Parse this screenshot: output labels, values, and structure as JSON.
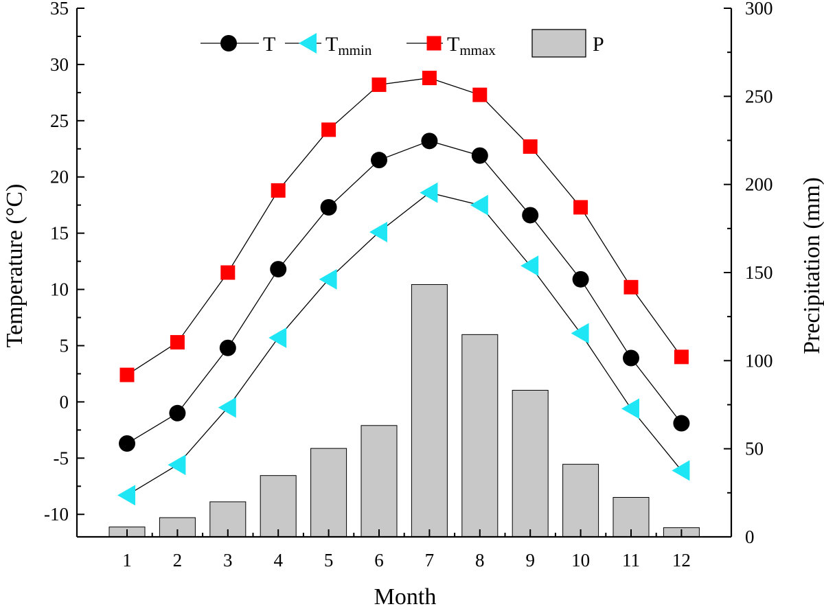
{
  "chart_data": {
    "type": "bar",
    "xlabel": "Month",
    "ylabel_left": "Temperature (°C)",
    "ylabel_right": "Precipitation (mm)",
    "categories": [
      "1",
      "2",
      "3",
      "4",
      "5",
      "6",
      "7",
      "8",
      "9",
      "10",
      "11",
      "12"
    ],
    "y_left_lim": [
      -12,
      35
    ],
    "y_left_ticks": [
      "-10",
      "-5",
      "0",
      "5",
      "10",
      "15",
      "20",
      "25",
      "30",
      "35"
    ],
    "y_right_lim": [
      0,
      300
    ],
    "y_right_ticks": [
      "0",
      "50",
      "100",
      "150",
      "200",
      "250",
      "300"
    ],
    "grid": false,
    "legend_position": "top",
    "series": [
      {
        "name": "T",
        "axis": "left",
        "kind": "line",
        "marker": "circle",
        "color": "#000000",
        "values": [
          -3.7,
          -1.0,
          4.8,
          11.8,
          17.3,
          21.5,
          23.2,
          21.9,
          16.6,
          10.9,
          3.9,
          -1.9
        ]
      },
      {
        "name": "Tmmin",
        "name_main": "T",
        "name_sub": "mmin",
        "axis": "left",
        "kind": "line",
        "marker": "triangle-left",
        "color": "#1fe6f5",
        "values": [
          -8.3,
          -5.6,
          -0.5,
          5.7,
          10.9,
          15.1,
          18.6,
          17.5,
          12.1,
          6.1,
          -0.6,
          -6.1
        ]
      },
      {
        "name": "Tmmax",
        "name_main": "T",
        "name_sub": "mmax",
        "axis": "left",
        "kind": "line",
        "marker": "square",
        "color": "#ff0000",
        "values": [
          2.4,
          5.3,
          11.5,
          18.8,
          24.2,
          28.2,
          28.8,
          27.3,
          22.7,
          17.3,
          10.2,
          4.0
        ]
      },
      {
        "name": "P",
        "axis": "right",
        "kind": "bar",
        "color": "#c8c8c8",
        "values": [
          5.6,
          10.9,
          19.9,
          34.8,
          50.2,
          63.2,
          143.2,
          114.8,
          83.2,
          41.2,
          22.4,
          5.2
        ]
      }
    ]
  }
}
